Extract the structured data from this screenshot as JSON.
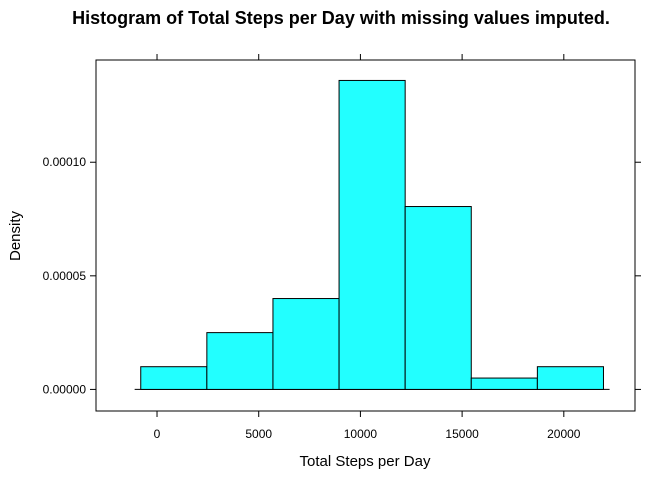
{
  "chart_data": {
    "type": "bar",
    "subtype": "histogram",
    "title": "Histogram of Total Steps per Day with missing values imputed.",
    "xlabel": "Total Steps per Day",
    "ylabel": "Density",
    "xlim": [
      -3000,
      23500
    ],
    "ylim": [
      -9.5e-06,
      0.000145
    ],
    "x_ticks": [
      0,
      5000,
      10000,
      15000,
      20000
    ],
    "x_tick_labels": [
      "0",
      "5000",
      "10000",
      "15000",
      "20000"
    ],
    "y_ticks": [
      0,
      5e-05,
      0.0001
    ],
    "y_tick_labels": [
      "0.00000",
      "0.00005",
      "0.00010"
    ],
    "bins": [
      {
        "start": -800,
        "end": 2450,
        "density": 1e-05
      },
      {
        "start": 2450,
        "end": 5700,
        "density": 2.5e-05
      },
      {
        "start": 5700,
        "end": 8950,
        "density": 4e-05
      },
      {
        "start": 8950,
        "end": 12200,
        "density": 0.000136
      },
      {
        "start": 12200,
        "end": 15450,
        "density": 8.05e-05
      },
      {
        "start": 15450,
        "end": 18700,
        "density": 5e-06
      },
      {
        "start": 18700,
        "end": 21950,
        "density": 1e-05
      }
    ],
    "baseline_range": [
      -1100,
      22250
    ],
    "bar_color": "#22ffff",
    "edge_color": "#000000",
    "grid": false,
    "legend": "none"
  }
}
